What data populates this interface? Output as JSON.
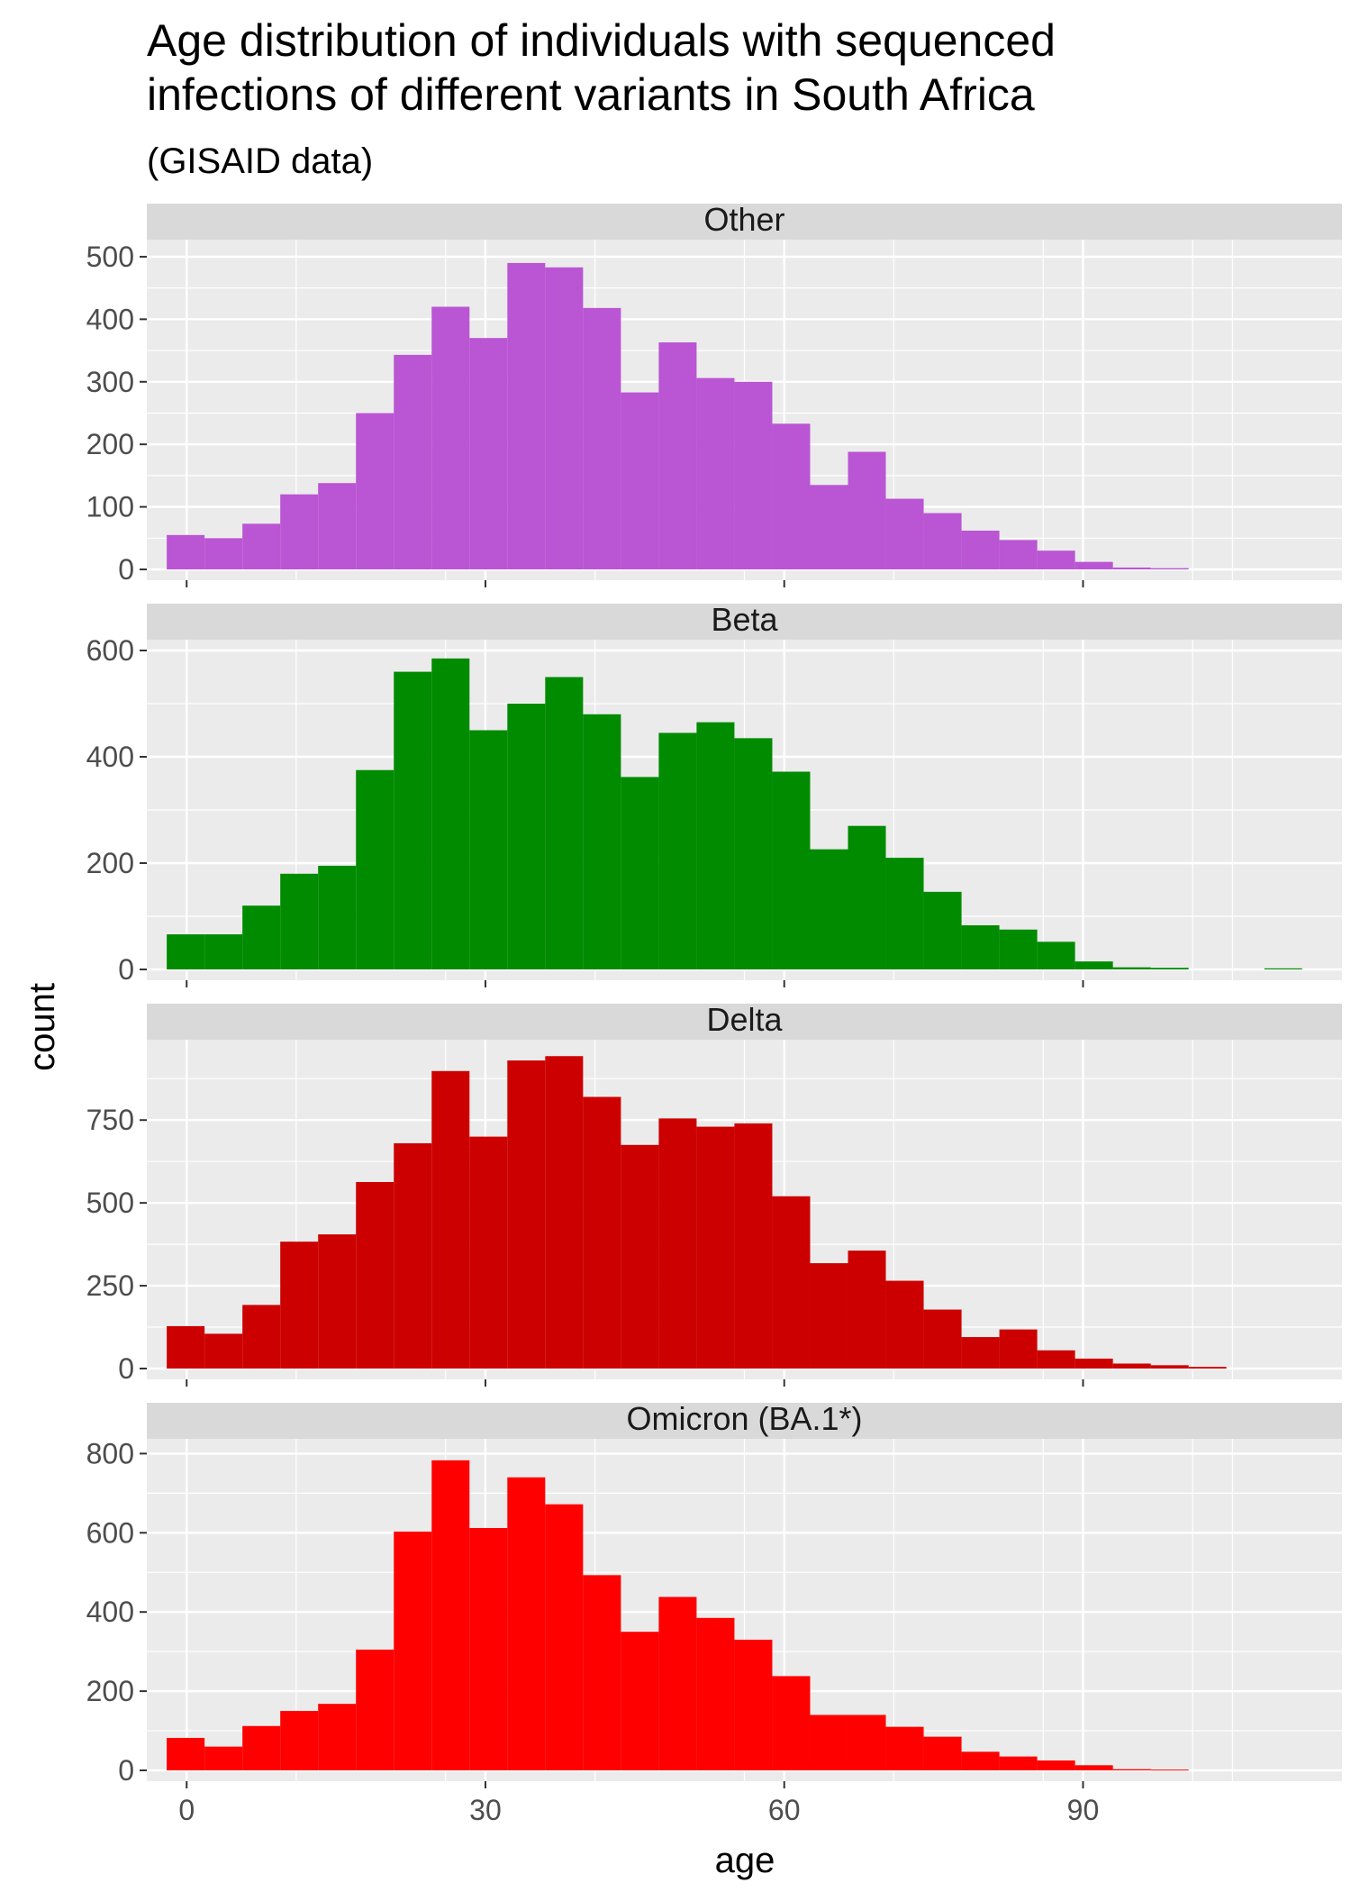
{
  "chart_data": {
    "type": "bar",
    "subtype": "histogram",
    "title": "Age distribution of individuals with sequenced infections of different variants in South Africa",
    "title_lines": [
      "Age distribution of individuals with sequenced",
      "infections of different variants in South Africa"
    ],
    "subtitle": "(GISAID data)",
    "xlabel": "age",
    "ylabel": "count",
    "xlim": [
      -4,
      116
    ],
    "xticks": [
      0,
      30,
      60,
      90
    ],
    "grid": true,
    "bin_width": 3.8,
    "bin_start": -2,
    "panels": [
      {
        "name": "Other",
        "color": "#BA55D3",
        "ylim": [
          0,
          510
        ],
        "yticks": [
          0,
          100,
          200,
          300,
          400,
          500
        ],
        "values": [
          55,
          50,
          73,
          120,
          138,
          250,
          343,
          420,
          370,
          490,
          483,
          418,
          283,
          363,
          306,
          300,
          233,
          135,
          188,
          113,
          90,
          62,
          47,
          30,
          12,
          3,
          2,
          0,
          0,
          0,
          0
        ]
      },
      {
        "name": "Beta",
        "color": "#008B00",
        "ylim": [
          0,
          600
        ],
        "yticks": [
          0,
          200,
          400,
          600
        ],
        "values": [
          66,
          66,
          120,
          180,
          195,
          375,
          560,
          585,
          450,
          500,
          550,
          480,
          362,
          445,
          465,
          435,
          372,
          226,
          270,
          210,
          146,
          83,
          75,
          52,
          15,
          4,
          3,
          0,
          0,
          2,
          0
        ]
      },
      {
        "name": "Delta",
        "color": "#CD0000",
        "ylim": [
          0,
          960
        ],
        "yticks": [
          0,
          250,
          500,
          750
        ],
        "values": [
          128,
          105,
          192,
          383,
          405,
          563,
          680,
          898,
          700,
          930,
          943,
          820,
          675,
          755,
          730,
          740,
          520,
          318,
          356,
          265,
          178,
          95,
          118,
          55,
          30,
          15,
          10,
          5,
          0,
          0,
          0
        ]
      },
      {
        "name": "Omicron (BA.1*)",
        "color": "#FF0000",
        "ylim": [
          0,
          810
        ],
        "yticks": [
          0,
          200,
          400,
          600,
          800
        ],
        "values": [
          82,
          60,
          112,
          150,
          168,
          305,
          603,
          783,
          612,
          740,
          672,
          493,
          350,
          438,
          385,
          330,
          238,
          140,
          140,
          110,
          85,
          47,
          35,
          25,
          13,
          3,
          2,
          0,
          0,
          0,
          0
        ]
      }
    ]
  }
}
